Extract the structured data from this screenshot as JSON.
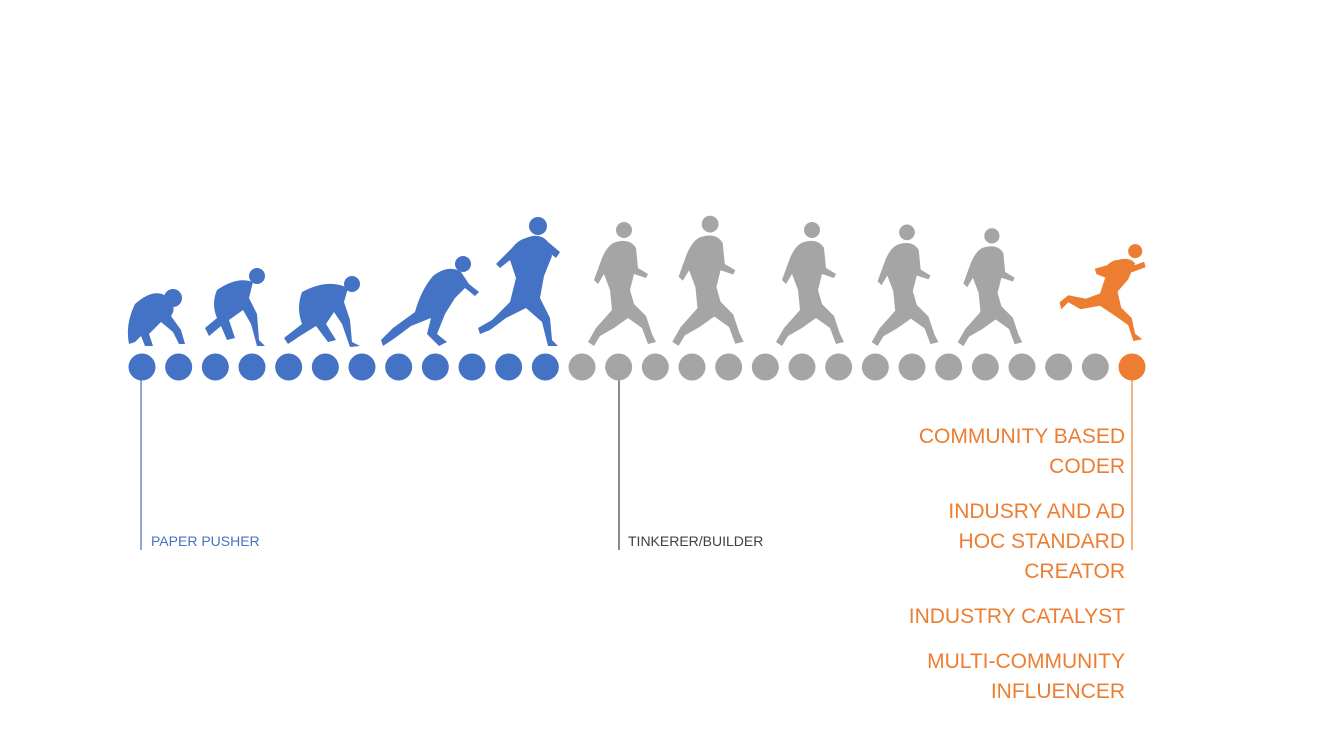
{
  "colors": {
    "blue": "#4472C4",
    "gray": "#A5A5A5",
    "orange": "#ED7D31",
    "dark_text": "#404040"
  },
  "milestones": {
    "paper_pusher": "PAPER PUSHER",
    "tinkerer_builder": "TINKERER/BUILDER",
    "top_level": [
      "COMMUNITY BASED\nCODER",
      "INDUSRY  AND  AD\nHOC STANDARD\nCREATOR",
      "INDUSTRY CATALYST",
      "MULTI-COMMUNITY\nINFLUENCER"
    ]
  },
  "timeline": {
    "dot_count": 28,
    "blue_dots": 12,
    "orange_dots": 1
  },
  "figures": [
    {
      "pose": "crouch",
      "color": "blue"
    },
    {
      "pose": "kneel-start",
      "color": "blue"
    },
    {
      "pose": "set",
      "color": "blue"
    },
    {
      "pose": "push-off",
      "color": "blue"
    },
    {
      "pose": "run-upright",
      "color": "blue"
    },
    {
      "pose": "run",
      "color": "gray"
    },
    {
      "pose": "run",
      "color": "gray"
    },
    {
      "pose": "run",
      "color": "gray"
    },
    {
      "pose": "run",
      "color": "gray"
    },
    {
      "pose": "run",
      "color": "gray"
    },
    {
      "pose": "leap",
      "color": "orange"
    }
  ]
}
